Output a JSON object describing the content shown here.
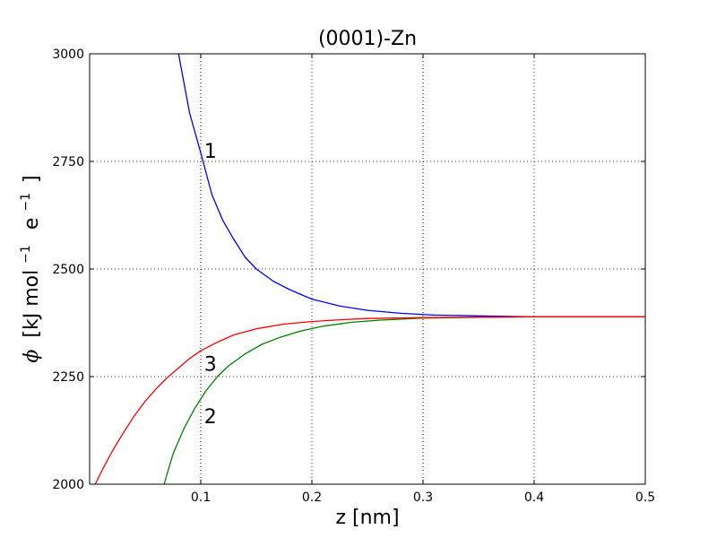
{
  "chart_data": {
    "type": "line",
    "title": "(0001)-Zn",
    "xlabel": "z [nm]",
    "ylabel": {
      "symbol": "ϕ",
      "open": "[kJ mol",
      "exp1": "−1",
      "mid": "e",
      "exp2": "−1",
      "close": "]"
    },
    "xlim": [
      0.0,
      0.5
    ],
    "ylim": [
      2000,
      3000
    ],
    "grid": true,
    "x_ticks": [
      0.1,
      0.2,
      0.3,
      0.4,
      0.5
    ],
    "x_tick_labels": [
      "0.1",
      "0.2",
      "0.3",
      "0.4",
      "0.5"
    ],
    "y_ticks": [
      2000,
      2250,
      2500,
      2750,
      3000
    ],
    "y_tick_labels": [
      "2000",
      "2250",
      "2500",
      "2750",
      "3000"
    ],
    "series": [
      {
        "label": "1",
        "color": "#0000ff",
        "x": [
          0.08,
          0.09,
          0.1,
          0.11,
          0.12,
          0.13,
          0.14,
          0.15,
          0.165,
          0.18,
          0.2,
          0.225,
          0.25,
          0.28,
          0.31,
          0.35,
          0.4,
          0.45,
          0.5
        ],
        "y": [
          3000,
          2862,
          2770,
          2673,
          2612,
          2568,
          2527,
          2500,
          2472,
          2452,
          2430,
          2414,
          2404,
          2397,
          2393,
          2391,
          2389,
          2389,
          2389
        ]
      },
      {
        "label": "2",
        "color": "#008000",
        "x": [
          0.067,
          0.075,
          0.085,
          0.095,
          0.105,
          0.115,
          0.125,
          0.14,
          0.155,
          0.17,
          0.19,
          0.21,
          0.235,
          0.26,
          0.3,
          0.35,
          0.4,
          0.45,
          0.5
        ],
        "y": [
          2000,
          2070,
          2130,
          2178,
          2218,
          2250,
          2275,
          2303,
          2325,
          2340,
          2356,
          2367,
          2376,
          2381,
          2386,
          2388,
          2389,
          2389,
          2389
        ]
      },
      {
        "label": "3",
        "color": "#ff0000",
        "x": [
          0.005,
          0.012,
          0.02,
          0.03,
          0.04,
          0.05,
          0.06,
          0.07,
          0.08,
          0.09,
          0.1,
          0.115,
          0.13,
          0.15,
          0.175,
          0.2,
          0.225,
          0.25,
          0.3,
          0.35,
          0.4,
          0.45,
          0.5
        ],
        "y": [
          2000,
          2036,
          2075,
          2118,
          2158,
          2193,
          2222,
          2248,
          2270,
          2292,
          2310,
          2330,
          2347,
          2361,
          2372,
          2378,
          2382,
          2385,
          2387,
          2388,
          2389,
          2389,
          2389
        ]
      }
    ],
    "annotations": [
      {
        "text": "1",
        "x": 0.103,
        "y": 2775
      },
      {
        "text": "3",
        "x": 0.103,
        "y": 2280
      },
      {
        "text": "2",
        "x": 0.103,
        "y": 2158
      }
    ]
  }
}
